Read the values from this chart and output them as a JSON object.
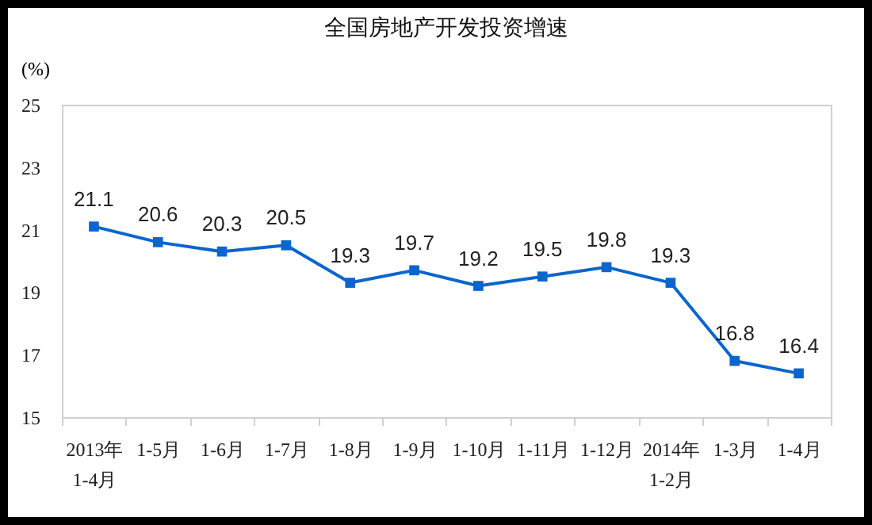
{
  "chart_data": {
    "type": "line",
    "title": "全国房地产开发投资增速",
    "ylabel": "(%)",
    "categories": [
      "2013年\n1-4月",
      "1-5月",
      "1-6月",
      "1-7月",
      "1-8月",
      "1-9月",
      "1-10月",
      "1-11月",
      "1-12月",
      "2014年\n1-2月",
      "1-3月",
      "1-4月"
    ],
    "series": [
      {
        "color": "#0a66cc",
        "values": [
          21.1,
          20.6,
          20.3,
          20.5,
          19.3,
          19.7,
          19.2,
          19.5,
          19.8,
          19.3,
          16.8,
          16.4
        ]
      }
    ],
    "ylim": [
      15,
      25
    ],
    "yticks": [
      15,
      17,
      19,
      21,
      23,
      25
    ],
    "grid": false,
    "legend": false,
    "marker": "square",
    "line_style": "solid",
    "data_labels": true
  }
}
